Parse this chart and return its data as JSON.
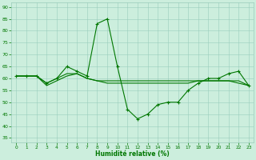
{
  "line1_x": [
    0,
    1,
    2,
    3,
    4,
    5,
    6,
    7,
    8,
    9,
    10,
    11,
    12,
    13,
    14,
    15,
    16,
    17,
    18,
    19,
    20,
    21,
    22,
    23
  ],
  "line1_y": [
    61,
    61,
    61,
    58,
    60,
    65,
    63,
    61,
    83,
    85,
    65,
    47,
    43,
    45,
    49,
    50,
    50,
    55,
    58,
    60,
    60,
    62,
    63,
    57
  ],
  "line2_x": [
    0,
    1,
    2,
    3,
    4,
    5,
    6,
    7,
    8,
    9,
    10,
    11,
    12,
    13,
    14,
    15,
    16,
    17,
    18,
    19,
    20,
    21,
    22,
    23
  ],
  "line2_y": [
    61,
    61,
    61,
    58,
    60,
    62,
    62,
    60,
    59,
    59,
    59,
    59,
    59,
    59,
    59,
    59,
    59,
    59,
    59,
    59,
    59,
    59,
    59,
    57
  ],
  "line3_x": [
    0,
    1,
    2,
    3,
    4,
    5,
    6,
    7,
    8,
    9,
    10,
    11,
    12,
    13,
    14,
    15,
    16,
    17,
    18,
    19,
    20,
    21,
    22,
    23
  ],
  "line3_y": [
    61,
    61,
    61,
    57,
    59,
    61,
    62,
    60,
    59,
    58,
    58,
    58,
    58,
    58,
    58,
    58,
    58,
    58,
    59,
    59,
    59,
    59,
    58,
    57
  ],
  "line_color": "#007700",
  "marker_color": "#007700",
  "bg_color": "#cceedd",
  "grid_color": "#99ccbb",
  "xlabel": "Humidité relative (%)",
  "xlabel_color": "#007700",
  "tick_color": "#007700",
  "ylim": [
    33,
    92
  ],
  "xlim": [
    -0.5,
    23.5
  ],
  "yticks": [
    35,
    40,
    45,
    50,
    55,
    60,
    65,
    70,
    75,
    80,
    85,
    90
  ],
  "xticks": [
    0,
    1,
    2,
    3,
    4,
    5,
    6,
    7,
    8,
    9,
    10,
    11,
    12,
    13,
    14,
    15,
    16,
    17,
    18,
    19,
    20,
    21,
    22,
    23
  ]
}
